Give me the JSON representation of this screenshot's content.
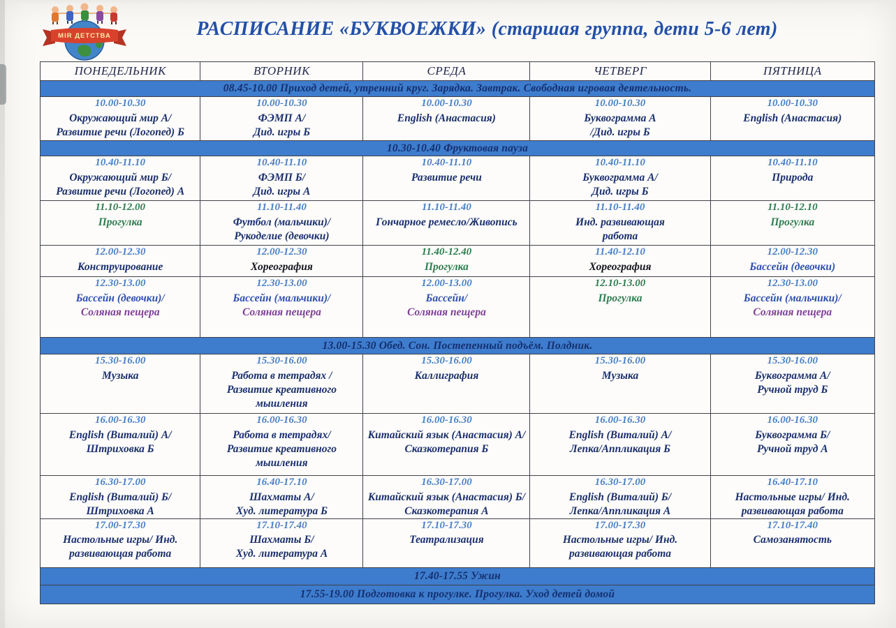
{
  "logo": {
    "banner_text": "MIR ДЕТСТВА"
  },
  "title": "РАСПИСАНИЕ «БУКВОЕЖКИ» (старшая группа, дети 5-6 лет)",
  "colors": {
    "banner_bg": "#3e7ccd",
    "banner_text": "#14306f",
    "time": "#4a80c6",
    "navy": "#1a2f6d",
    "green": "#2e7d50",
    "pool": "#2e4fae",
    "purple": "#7e3e98",
    "black": "#15151f",
    "header": "#20264c",
    "title": "#2350a8"
  },
  "table": {
    "days": [
      "ПОНЕДЕЛЬНИК",
      "ВТОРНИК",
      "СРЕДА",
      "ЧЕТВЕРГ",
      "ПЯТНИЦА"
    ],
    "rows": [
      {
        "type": "banner",
        "text": "08.45-10.00 Приход детей, утренний круг. Зарядка. Завтрак. Свободная игровая деятельность."
      },
      {
        "type": "schedule",
        "cells": [
          {
            "time": "10.00-10.30",
            "lines": [
              {
                "t": "Окружающий мир А/",
                "c": "navy"
              },
              {
                "t": "Развитие речи (Логопед) Б",
                "c": "navy"
              }
            ]
          },
          {
            "time": "10.00-10.30",
            "lines": [
              {
                "t": "ФЭМП А/",
                "c": "navy"
              },
              {
                "t": "Дид. игры Б",
                "c": "navy"
              }
            ]
          },
          {
            "time": "10.00-10.30",
            "lines": [
              {
                "t": "English (Анастасия)",
                "c": "navy"
              }
            ]
          },
          {
            "time": "10.00-10.30",
            "lines": [
              {
                "t": "Буквограмма А",
                "c": "navy"
              },
              {
                "t": "/Дид. игры Б",
                "c": "navy"
              }
            ]
          },
          {
            "time": "10.00-10.30",
            "lines": [
              {
                "t": "English (Анастасия)",
                "c": "navy"
              }
            ]
          }
        ]
      },
      {
        "type": "banner",
        "text": "10.30-10.40 Фруктовая пауза"
      },
      {
        "type": "schedule",
        "cells": [
          {
            "time": "10.40-11.10",
            "lines": [
              {
                "t": "Окружающий мир Б/",
                "c": "navy"
              },
              {
                "t": "Развитие речи (Логопед) А",
                "c": "navy"
              }
            ]
          },
          {
            "time": "10.40-11.10",
            "lines": [
              {
                "t": "ФЭМП Б/",
                "c": "navy"
              },
              {
                "t": "Дид. игры А",
                "c": "navy"
              }
            ]
          },
          {
            "time": "10.40-11.10",
            "lines": [
              {
                "t": "Развитие речи",
                "c": "navy"
              }
            ]
          },
          {
            "time": "10.40-11.10",
            "lines": [
              {
                "t": "Буквограмма А/",
                "c": "navy"
              },
              {
                "t": "Дид. игры Б",
                "c": "navy"
              }
            ]
          },
          {
            "time": "10.40-11.10",
            "lines": [
              {
                "t": "Природа",
                "c": "navy"
              }
            ]
          }
        ]
      },
      {
        "type": "schedule",
        "cells": [
          {
            "time": "11.10-12.00",
            "time_c": "green",
            "lines": [
              {
                "t": "Прогулка",
                "c": "green"
              }
            ]
          },
          {
            "time": "11.10-11.40",
            "lines": [
              {
                "t": "Футбол (мальчики)/",
                "c": "navy"
              },
              {
                "t": "Рукоделие (девочки)",
                "c": "navy"
              }
            ]
          },
          {
            "time": "11.10-11.40",
            "lines": [
              {
                "t": "Гончарное ремесло/Живопись",
                "c": "navy"
              }
            ]
          },
          {
            "time": "11.10-11.40",
            "lines": [
              {
                "t": "Инд. развивающая",
                "c": "navy"
              },
              {
                "t": "работа",
                "c": "navy"
              }
            ]
          },
          {
            "time": "11.10-12.10",
            "time_c": "green",
            "lines": [
              {
                "t": "Прогулка",
                "c": "green"
              }
            ]
          }
        ]
      },
      {
        "type": "schedule",
        "cells": [
          {
            "time": "12.00-12.30",
            "lines": [
              {
                "t": "Конструирование",
                "c": "navy"
              }
            ]
          },
          {
            "time": "12.00-12.30",
            "lines": [
              {
                "t": "Хореография",
                "c": "black"
              }
            ]
          },
          {
            "time": "11.40-12.40",
            "time_c": "green",
            "lines": [
              {
                "t": "Прогулка",
                "c": "green"
              }
            ]
          },
          {
            "time": "11.40-12.10",
            "lines": [
              {
                "t": "Хореография",
                "c": "black"
              }
            ]
          },
          {
            "time": "12.00-12.30",
            "lines": [
              {
                "t": "Бассейн (девочки)",
                "c": "pool"
              }
            ]
          }
        ]
      },
      {
        "type": "schedule",
        "cells": [
          {
            "time": "12.30-13.00",
            "lines": [
              {
                "t": "Бассейн (девочки)/",
                "c": "pool"
              },
              {
                "t": "Соляная пещера",
                "c": "purple"
              }
            ]
          },
          {
            "time": "12.30-13.00",
            "lines": [
              {
                "t": "Бассейн (мальчики)/",
                "c": "pool"
              },
              {
                "t": "Соляная пещера",
                "c": "purple"
              }
            ]
          },
          {
            "time": "12.00-13.00",
            "lines": [
              {
                "t": "Бассейн/",
                "c": "pool"
              },
              {
                "t": "Соляная пещера",
                "c": "purple"
              }
            ]
          },
          {
            "time": "12.10-13.00",
            "time_c": "green",
            "lines": [
              {
                "t": "Прогулка",
                "c": "green"
              }
            ]
          },
          {
            "time": "12.30-13.00",
            "lines": [
              {
                "t": "Бассейн (мальчики)/",
                "c": "pool"
              },
              {
                "t": "Соляная пещера",
                "c": "purple"
              }
            ]
          }
        ]
      },
      {
        "type": "banner",
        "text": "13.00-15.30 Обед. Сон. Постепенный подъём. Полдник."
      },
      {
        "type": "schedule",
        "cells": [
          {
            "time": "15.30-16.00",
            "lines": [
              {
                "t": "Музыка",
                "c": "navy"
              }
            ]
          },
          {
            "time": "15.30-16.00",
            "lines": [
              {
                "t": "Работа в тетрадях /",
                "c": "navy"
              },
              {
                "t": "Развитие креативного",
                "c": "navy"
              },
              {
                "t": "мышления",
                "c": "navy"
              }
            ]
          },
          {
            "time": "15.30-16.00",
            "lines": [
              {
                "t": "Каллиграфия",
                "c": "navy"
              }
            ]
          },
          {
            "time": "15.30-16.00",
            "lines": [
              {
                "t": "Музыка",
                "c": "navy"
              }
            ]
          },
          {
            "time": "15.30-16.00",
            "lines": [
              {
                "t": "Буквограмма А/",
                "c": "navy"
              },
              {
                "t": "Ручной труд Б",
                "c": "navy"
              }
            ]
          }
        ]
      },
      {
        "type": "schedule",
        "cells": [
          {
            "time": "16.00-16.30",
            "lines": [
              {
                "t": "English (Виталий) А/",
                "c": "navy"
              },
              {
                "t": "Штриховка Б",
                "c": "navy"
              }
            ]
          },
          {
            "time": "16.00-16.30",
            "lines": [
              {
                "t": "Работа в тетрадях/",
                "c": "navy"
              },
              {
                "t": "Развитие креативного",
                "c": "navy"
              },
              {
                "t": "мышления",
                "c": "navy"
              }
            ]
          },
          {
            "time": "16.00-16.30",
            "lines": [
              {
                "t": "Китайский язык (Анастасия) А/",
                "c": "navy"
              },
              {
                "t": "Сказкотерапия Б",
                "c": "navy"
              }
            ]
          },
          {
            "time": "16.00-16.30",
            "lines": [
              {
                "t": "English (Виталий) А/",
                "c": "navy"
              },
              {
                "t": "Лепка/Аппликация Б",
                "c": "navy"
              }
            ]
          },
          {
            "time": "16.00-16.30",
            "lines": [
              {
                "t": "Буквограмма Б/",
                "c": "navy"
              },
              {
                "t": "Ручной труд А",
                "c": "navy"
              }
            ]
          }
        ]
      },
      {
        "type": "schedule",
        "cells": [
          {
            "time": "16.30-17.00",
            "lines": [
              {
                "t": "English (Виталий) Б/",
                "c": "navy"
              },
              {
                "t": "Штриховка А",
                "c": "navy"
              }
            ]
          },
          {
            "time": "16.40-17.10",
            "lines": [
              {
                "t": "Шахматы А/",
                "c": "navy"
              },
              {
                "t": "Худ. литература Б",
                "c": "navy"
              }
            ]
          },
          {
            "time": "16.30-17.00",
            "lines": [
              {
                "t": "Китайский язык (Анастасия) Б/",
                "c": "navy"
              },
              {
                "t": "Сказкотерапия А",
                "c": "navy"
              }
            ]
          },
          {
            "time": "16.30-17.00",
            "lines": [
              {
                "t": "English (Виталий) Б/",
                "c": "navy"
              },
              {
                "t": "Лепка/Аппликация А",
                "c": "navy"
              }
            ]
          },
          {
            "time": "16.40-17.10",
            "lines": [
              {
                "t": "Настольные игры/ Инд.",
                "c": "navy"
              },
              {
                "t": "развивающая работа",
                "c": "navy"
              }
            ]
          }
        ]
      },
      {
        "type": "schedule",
        "cells": [
          {
            "time": "17.00-17.30",
            "lines": [
              {
                "t": "Настольные игры/ Инд.",
                "c": "navy"
              },
              {
                "t": "развивающая работа",
                "c": "navy"
              }
            ]
          },
          {
            "time": "17.10-17.40",
            "lines": [
              {
                "t": "Шахматы Б/",
                "c": "navy"
              },
              {
                "t": "Худ. литература А",
                "c": "navy"
              }
            ]
          },
          {
            "time": "17.10-17.30",
            "lines": [
              {
                "t": "Театрализация",
                "c": "navy"
              }
            ]
          },
          {
            "time": "17.00-17.30",
            "lines": [
              {
                "t": "Настольные игры/ Инд.",
                "c": "navy"
              },
              {
                "t": "развивающая работа",
                "c": "navy"
              }
            ]
          },
          {
            "time": "17.10-17.40",
            "lines": [
              {
                "t": "Самозанятость",
                "c": "navy"
              }
            ]
          }
        ]
      },
      {
        "type": "banner",
        "text": "17.40-17.55 Ужин"
      },
      {
        "type": "banner",
        "text": "17.55-19.00 Подготовка к прогулке. Прогулка. Уход детей домой"
      }
    ]
  }
}
